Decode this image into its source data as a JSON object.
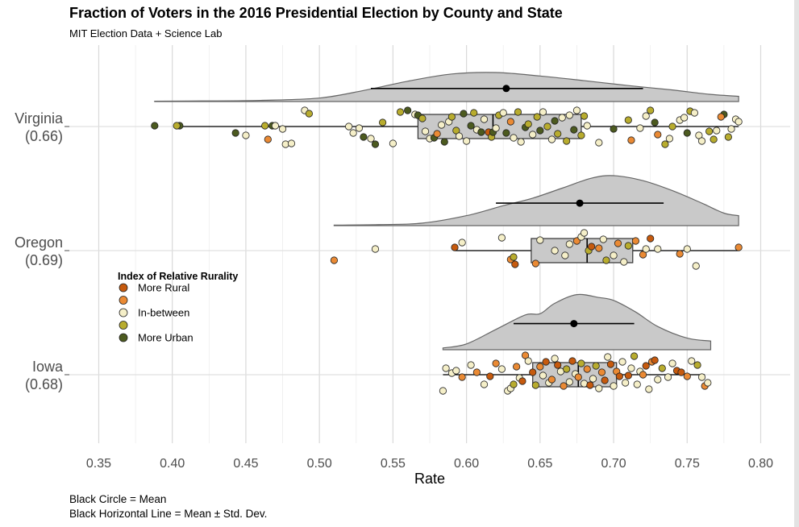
{
  "chart_data": {
    "type": "scatter",
    "title": "Fraction of Voters in the 2016 Presidential Election by County and State",
    "subtitle": "MIT Election Data + Science Lab",
    "xlabel": "Rate",
    "ylabel": "",
    "xlim": [
      0.33,
      0.82
    ],
    "x_ticks": [
      "0.35",
      "0.40",
      "0.45",
      "0.50",
      "0.55",
      "0.60",
      "0.65",
      "0.70",
      "0.75",
      "0.80"
    ],
    "grid": true,
    "legend": {
      "title": "Index of Relative Rurality",
      "position": "left-middle",
      "items": [
        {
          "label": "More Rural",
          "color": "#c65a0e"
        },
        {
          "label": "",
          "color": "#ea8a34"
        },
        {
          "label": "In-between",
          "color": "#f5efc8"
        },
        {
          "label": "",
          "color": "#b8ac2e"
        },
        {
          "label": "More Urban",
          "color": "#4c5a1f"
        }
      ]
    },
    "captions": [
      "Black Circle = Mean",
      "Black Horizontal Line = Mean ± Std. Dev."
    ],
    "states": [
      {
        "label": "Virginia",
        "mean_label": "(0.66)",
        "mean": 0.627,
        "sd_low": 0.535,
        "sd_high": 0.72,
        "box": {
          "min": 0.403,
          "q1": 0.567,
          "median": 0.618,
          "q3": 0.678,
          "max": 0.785
        },
        "density": [
          [
            0.388,
            0.01
          ],
          [
            0.42,
            0.02
          ],
          [
            0.46,
            0.04
          ],
          [
            0.5,
            0.12
          ],
          [
            0.53,
            0.38
          ],
          [
            0.56,
            0.7
          ],
          [
            0.59,
            0.95
          ],
          [
            0.62,
            1.0
          ],
          [
            0.65,
            0.88
          ],
          [
            0.68,
            0.72
          ],
          [
            0.71,
            0.55
          ],
          [
            0.74,
            0.4
          ],
          [
            0.765,
            0.25
          ],
          [
            0.785,
            0.18
          ]
        ],
        "points": [
          [
            0.388,
            4,
            -1
          ],
          [
            0.405,
            4,
            -1
          ],
          [
            0.403,
            3,
            -1
          ],
          [
            0.443,
            4,
            8
          ],
          [
            0.45,
            2,
            11
          ],
          [
            0.463,
            3,
            -1
          ],
          [
            0.465,
            1,
            16
          ],
          [
            0.468,
            4,
            -1
          ],
          [
            0.47,
            2,
            -1
          ],
          [
            0.475,
            2,
            3
          ],
          [
            0.477,
            2,
            22
          ],
          [
            0.481,
            2,
            21
          ],
          [
            0.49,
            2,
            -20
          ],
          [
            0.493,
            3,
            -16
          ],
          [
            0.52,
            2,
            0
          ],
          [
            0.523,
            2,
            8
          ],
          [
            0.527,
            2,
            2
          ],
          [
            0.53,
            4,
            13
          ],
          [
            0.535,
            2,
            15
          ],
          [
            0.538,
            4,
            22
          ],
          [
            0.543,
            3,
            -5
          ],
          [
            0.55,
            2,
            21
          ],
          [
            0.555,
            3,
            -18
          ],
          [
            0.56,
            4,
            -20
          ],
          [
            0.565,
            2,
            -15
          ],
          [
            0.567,
            4,
            -14
          ],
          [
            0.57,
            3,
            -10
          ],
          [
            0.572,
            2,
            6
          ],
          [
            0.575,
            2,
            15
          ],
          [
            0.578,
            4,
            14
          ],
          [
            0.58,
            1,
            9
          ],
          [
            0.583,
            2,
            -2
          ],
          [
            0.585,
            4,
            19
          ],
          [
            0.588,
            2,
            -6
          ],
          [
            0.59,
            3,
            -12
          ],
          [
            0.593,
            3,
            5
          ],
          [
            0.595,
            2,
            12
          ],
          [
            0.598,
            4,
            -16
          ],
          [
            0.6,
            2,
            18
          ],
          [
            0.603,
            4,
            -1
          ],
          [
            0.605,
            3,
            -17
          ],
          [
            0.607,
            2,
            4
          ],
          [
            0.61,
            4,
            7
          ],
          [
            0.612,
            2,
            -9
          ],
          [
            0.615,
            0,
            7
          ],
          [
            0.617,
            3,
            13
          ],
          [
            0.618,
            4,
            7
          ],
          [
            0.62,
            2,
            2
          ],
          [
            0.622,
            3,
            -14
          ],
          [
            0.625,
            2,
            -17
          ],
          [
            0.627,
            4,
            8
          ],
          [
            0.63,
            1,
            -6
          ],
          [
            0.632,
            2,
            14
          ],
          [
            0.635,
            3,
            -18
          ],
          [
            0.637,
            2,
            19
          ],
          [
            0.64,
            4,
            1
          ],
          [
            0.642,
            3,
            -3
          ],
          [
            0.645,
            2,
            10
          ],
          [
            0.648,
            3,
            -12
          ],
          [
            0.65,
            4,
            5
          ],
          [
            0.652,
            2,
            -18
          ],
          [
            0.655,
            3,
            0
          ],
          [
            0.658,
            2,
            16
          ],
          [
            0.66,
            4,
            -7
          ],
          [
            0.662,
            3,
            9
          ],
          [
            0.665,
            2,
            -11
          ],
          [
            0.668,
            3,
            18
          ],
          [
            0.67,
            2,
            -14
          ],
          [
            0.673,
            4,
            4
          ],
          [
            0.675,
            2,
            -20
          ],
          [
            0.678,
            3,
            11
          ],
          [
            0.68,
            3,
            -13
          ],
          [
            0.682,
            2,
            -1
          ],
          [
            0.69,
            2,
            20
          ],
          [
            0.7,
            4,
            3
          ],
          [
            0.71,
            3,
            -8
          ],
          [
            0.712,
            1,
            17
          ],
          [
            0.718,
            2,
            2
          ],
          [
            0.722,
            2,
            -13
          ],
          [
            0.725,
            3,
            -20
          ],
          [
            0.728,
            4,
            -5
          ],
          [
            0.73,
            1,
            10
          ],
          [
            0.735,
            3,
            22
          ],
          [
            0.738,
            2,
            15
          ],
          [
            0.74,
            3,
            0
          ],
          [
            0.745,
            2,
            -8
          ],
          [
            0.748,
            2,
            -11
          ],
          [
            0.75,
            4,
            8
          ],
          [
            0.752,
            3,
            -19
          ],
          [
            0.755,
            2,
            -17
          ],
          [
            0.758,
            2,
            11
          ],
          [
            0.76,
            2,
            18
          ],
          [
            0.765,
            3,
            6
          ],
          [
            0.775,
            4,
            -15
          ],
          [
            0.778,
            3,
            13
          ],
          [
            0.78,
            2,
            3
          ],
          [
            0.783,
            2,
            -9
          ],
          [
            0.785,
            2,
            -6
          ],
          [
            0.77,
            2,
            5
          ],
          [
            0.773,
            1,
            -12
          ],
          [
            0.768,
            3,
            16
          ]
        ]
      },
      {
        "label": "Oregon",
        "mean_label": "(0.69)",
        "mean": 0.677,
        "sd_low": 0.62,
        "sd_high": 0.734,
        "box": {
          "min": 0.592,
          "q1": 0.644,
          "median": 0.682,
          "q3": 0.713,
          "max": 0.785
        },
        "density": [
          [
            0.51,
            0.01
          ],
          [
            0.54,
            0.02
          ],
          [
            0.57,
            0.05
          ],
          [
            0.6,
            0.2
          ],
          [
            0.625,
            0.4
          ],
          [
            0.645,
            0.55
          ],
          [
            0.665,
            0.75
          ],
          [
            0.685,
            0.95
          ],
          [
            0.7,
            1.0
          ],
          [
            0.72,
            0.9
          ],
          [
            0.74,
            0.7
          ],
          [
            0.76,
            0.45
          ],
          [
            0.775,
            0.25
          ],
          [
            0.785,
            0.2
          ]
        ],
        "points": [
          [
            0.51,
            1,
            12
          ],
          [
            0.538,
            2,
            -2
          ],
          [
            0.592,
            0,
            -4
          ],
          [
            0.597,
            2,
            -10
          ],
          [
            0.624,
            2,
            -16
          ],
          [
            0.63,
            1,
            11
          ],
          [
            0.632,
            3,
            8
          ],
          [
            0.633,
            0,
            17
          ],
          [
            0.647,
            1,
            16
          ],
          [
            0.65,
            2,
            -13
          ],
          [
            0.66,
            2,
            0
          ],
          [
            0.667,
            2,
            6
          ],
          [
            0.67,
            2,
            -8
          ],
          [
            0.675,
            1,
            -12
          ],
          [
            0.678,
            2,
            -17
          ],
          [
            0.68,
            2,
            -22
          ],
          [
            0.683,
            3,
            0
          ],
          [
            0.685,
            0,
            -5
          ],
          [
            0.69,
            1,
            -3
          ],
          [
            0.693,
            2,
            -14
          ],
          [
            0.695,
            3,
            12
          ],
          [
            0.7,
            2,
            6
          ],
          [
            0.703,
            1,
            -9
          ],
          [
            0.707,
            2,
            14
          ],
          [
            0.71,
            3,
            -6
          ],
          [
            0.715,
            1,
            -12
          ],
          [
            0.72,
            1,
            5
          ],
          [
            0.725,
            0,
            -15
          ],
          [
            0.73,
            2,
            -2
          ],
          [
            0.745,
            1,
            4
          ],
          [
            0.75,
            2,
            -2
          ],
          [
            0.756,
            2,
            19
          ],
          [
            0.785,
            1,
            -4
          ],
          [
            0.722,
            2,
            -2
          ]
        ]
      },
      {
        "label": "Iowa",
        "mean_label": "(0.68)",
        "mean": 0.673,
        "sd_low": 0.632,
        "sd_high": 0.714,
        "box": {
          "min": 0.584,
          "q1": 0.645,
          "median": 0.676,
          "q3": 0.702,
          "max": 0.762
        },
        "density": [
          [
            0.584,
            0.03
          ],
          [
            0.6,
            0.1
          ],
          [
            0.62,
            0.35
          ],
          [
            0.64,
            0.6
          ],
          [
            0.65,
            0.62
          ],
          [
            0.66,
            0.8
          ],
          [
            0.675,
            0.95
          ],
          [
            0.69,
            0.9
          ],
          [
            0.7,
            0.85
          ],
          [
            0.715,
            0.65
          ],
          [
            0.73,
            0.4
          ],
          [
            0.75,
            0.2
          ],
          [
            0.766,
            0.15
          ]
        ],
        "points": [
          [
            0.584,
            2,
            20
          ],
          [
            0.586,
            2,
            -8
          ],
          [
            0.59,
            2,
            -2
          ],
          [
            0.593,
            2,
            -5
          ],
          [
            0.597,
            1,
            3
          ],
          [
            0.603,
            2,
            -12
          ],
          [
            0.607,
            1,
            -3
          ],
          [
            0.612,
            2,
            12
          ],
          [
            0.616,
            0,
            2
          ],
          [
            0.62,
            1,
            -14
          ],
          [
            0.624,
            2,
            -7
          ],
          [
            0.628,
            2,
            20
          ],
          [
            0.63,
            2,
            17
          ],
          [
            0.632,
            3,
            12
          ],
          [
            0.634,
            1,
            -10
          ],
          [
            0.636,
            2,
            4
          ],
          [
            0.638,
            0,
            8
          ],
          [
            0.64,
            1,
            -24
          ],
          [
            0.642,
            2,
            -17
          ],
          [
            0.645,
            0,
            -3
          ],
          [
            0.647,
            3,
            13
          ],
          [
            0.65,
            1,
            -10
          ],
          [
            0.652,
            2,
            1
          ],
          [
            0.654,
            0,
            -16
          ],
          [
            0.656,
            2,
            10
          ],
          [
            0.658,
            1,
            6
          ],
          [
            0.66,
            2,
            -20
          ],
          [
            0.662,
            0,
            -12
          ],
          [
            0.664,
            2,
            -4
          ],
          [
            0.666,
            1,
            14
          ],
          [
            0.668,
            3,
            -7
          ],
          [
            0.67,
            2,
            9
          ],
          [
            0.672,
            0,
            -17
          ],
          [
            0.674,
            2,
            -1
          ],
          [
            0.676,
            1,
            3
          ],
          [
            0.678,
            3,
            -14
          ],
          [
            0.68,
            2,
            11
          ],
          [
            0.682,
            1,
            -7
          ],
          [
            0.684,
            0,
            13
          ],
          [
            0.686,
            2,
            5
          ],
          [
            0.688,
            3,
            -11
          ],
          [
            0.69,
            2,
            17
          ],
          [
            0.692,
            1,
            -3
          ],
          [
            0.694,
            0,
            7
          ],
          [
            0.696,
            2,
            -22
          ],
          [
            0.698,
            0,
            -13
          ],
          [
            0.7,
            2,
            14
          ],
          [
            0.702,
            1,
            -4
          ],
          [
            0.704,
            0,
            2
          ],
          [
            0.706,
            2,
            -16
          ],
          [
            0.708,
            2,
            10
          ],
          [
            0.71,
            0,
            1
          ],
          [
            0.712,
            2,
            -8
          ],
          [
            0.714,
            3,
            -23
          ],
          [
            0.716,
            2,
            12
          ],
          [
            0.718,
            2,
            -4
          ],
          [
            0.72,
            1,
            0
          ],
          [
            0.722,
            0,
            -11
          ],
          [
            0.724,
            2,
            18
          ],
          [
            0.726,
            1,
            -16
          ],
          [
            0.728,
            0,
            -18
          ],
          [
            0.73,
            2,
            6
          ],
          [
            0.733,
            3,
            -8
          ],
          [
            0.737,
            2,
            3
          ],
          [
            0.74,
            2,
            -14
          ],
          [
            0.743,
            0,
            -5
          ],
          [
            0.746,
            0,
            -3
          ],
          [
            0.75,
            1,
            2
          ],
          [
            0.753,
            2,
            -17
          ],
          [
            0.757,
            3,
            -12
          ],
          [
            0.76,
            2,
            3
          ],
          [
            0.762,
            1,
            14
          ],
          [
            0.764,
            2,
            10
          ]
        ]
      }
    ]
  }
}
